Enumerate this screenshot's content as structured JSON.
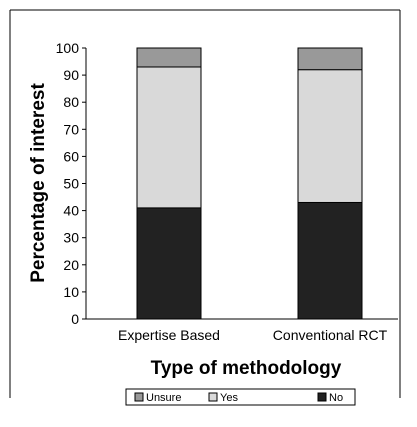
{
  "chart_data": {
    "type": "bar",
    "stacked": true,
    "categories": [
      "Expertise Based",
      "Conventional RCT"
    ],
    "series": [
      {
        "name": "No",
        "values": [
          41,
          43
        ],
        "color": "#222222"
      },
      {
        "name": "Yes",
        "values": [
          52,
          49
        ],
        "color": "#d9d9d9"
      },
      {
        "name": "Unsure",
        "values": [
          7,
          8
        ],
        "color": "#999999"
      }
    ],
    "xlabel": "Type of methodology",
    "ylabel": "Percentage of interest",
    "ylim": [
      0,
      100
    ],
    "yticks": [
      "0",
      "10",
      "20",
      "30",
      "40",
      "50",
      "60",
      "70",
      "80",
      "90",
      "100"
    ],
    "legend": {
      "position": "bottom",
      "entries": [
        "Unsure",
        "Yes",
        "No"
      ]
    },
    "grid": false
  }
}
